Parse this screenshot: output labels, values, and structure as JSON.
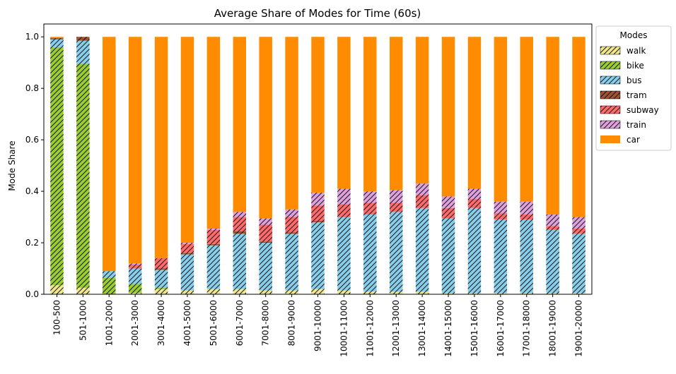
{
  "chart_data": {
    "type": "bar",
    "stacked": true,
    "title": "Average Share of Modes for Time (60s)",
    "xlabel": "",
    "ylabel": "Mode Share",
    "ylim": [
      0,
      1.05
    ],
    "yticks": [
      "0.0",
      "0.2",
      "0.4",
      "0.6",
      "0.8",
      "1.0"
    ],
    "grid": false,
    "legend": {
      "title": "Modes",
      "placement": "outside-top-right"
    },
    "categories": [
      "100-500",
      "501-1000",
      "1001-2000",
      "2001-3000",
      "3001-4000",
      "4001-5000",
      "5001-6000",
      "6001-7000",
      "7001-8000",
      "8001-9000",
      "9001-10000",
      "10001-11000",
      "11001-12000",
      "12001-13000",
      "13001-14000",
      "14001-15000",
      "15001-16000",
      "16001-17000",
      "17001-18000",
      "18001-19000",
      "19001-20000"
    ],
    "series": [
      {
        "name": "walk",
        "color": "#f0e68c",
        "hatch": true,
        "values": [
          0.035,
          0.025,
          0.0,
          0.005,
          0.02,
          0.015,
          0.02,
          0.02,
          0.015,
          0.015,
          0.02,
          0.015,
          0.01,
          0.01,
          0.01,
          0.005,
          0.005,
          0.005,
          0.005,
          0.005,
          0.005
        ]
      },
      {
        "name": "bike",
        "color": "#9acd32",
        "hatch": true,
        "values": [
          0.925,
          0.87,
          0.065,
          0.035,
          0.005,
          0.0,
          0.0,
          0.0,
          0.0,
          0.0,
          0.0,
          0.0,
          0.0,
          0.0,
          0.0,
          0.0,
          0.0,
          0.0,
          0.0,
          0.0,
          0.0
        ]
      },
      {
        "name": "bus",
        "color": "#87ceeb",
        "hatch": true,
        "values": [
          0.03,
          0.09,
          0.025,
          0.06,
          0.07,
          0.14,
          0.17,
          0.215,
          0.185,
          0.22,
          0.26,
          0.285,
          0.3,
          0.31,
          0.325,
          0.29,
          0.33,
          0.285,
          0.285,
          0.245,
          0.23
        ]
      },
      {
        "name": "tram",
        "color": "#a0522d",
        "hatch": true,
        "values": [
          0.005,
          0.015,
          0.0,
          0.0,
          0.005,
          0.005,
          0.005,
          0.01,
          0.005,
          0.005,
          0.005,
          0.0,
          0.0,
          0.0,
          0.0,
          0.0,
          0.0,
          0.0,
          0.0,
          0.0,
          0.0
        ]
      },
      {
        "name": "subway",
        "color": "#ff6b6b",
        "hatch": true,
        "values": [
          0.0,
          0.0,
          0.0,
          0.015,
          0.04,
          0.035,
          0.055,
          0.055,
          0.065,
          0.06,
          0.06,
          0.05,
          0.045,
          0.035,
          0.05,
          0.04,
          0.035,
          0.025,
          0.02,
          0.015,
          0.02
        ]
      },
      {
        "name": "train",
        "color": "#dda0dd",
        "hatch": true,
        "values": [
          0.0,
          0.0,
          0.0,
          0.005,
          0.0,
          0.005,
          0.005,
          0.02,
          0.025,
          0.03,
          0.05,
          0.06,
          0.045,
          0.05,
          0.045,
          0.045,
          0.04,
          0.045,
          0.05,
          0.045,
          0.045
        ]
      },
      {
        "name": "car",
        "color": "#ff8c00",
        "hatch": false,
        "values": [
          0.005,
          0.0,
          0.91,
          0.88,
          0.86,
          0.8,
          0.745,
          0.68,
          0.705,
          0.67,
          0.605,
          0.59,
          0.6,
          0.595,
          0.57,
          0.62,
          0.59,
          0.64,
          0.64,
          0.69,
          0.7
        ]
      }
    ]
  }
}
